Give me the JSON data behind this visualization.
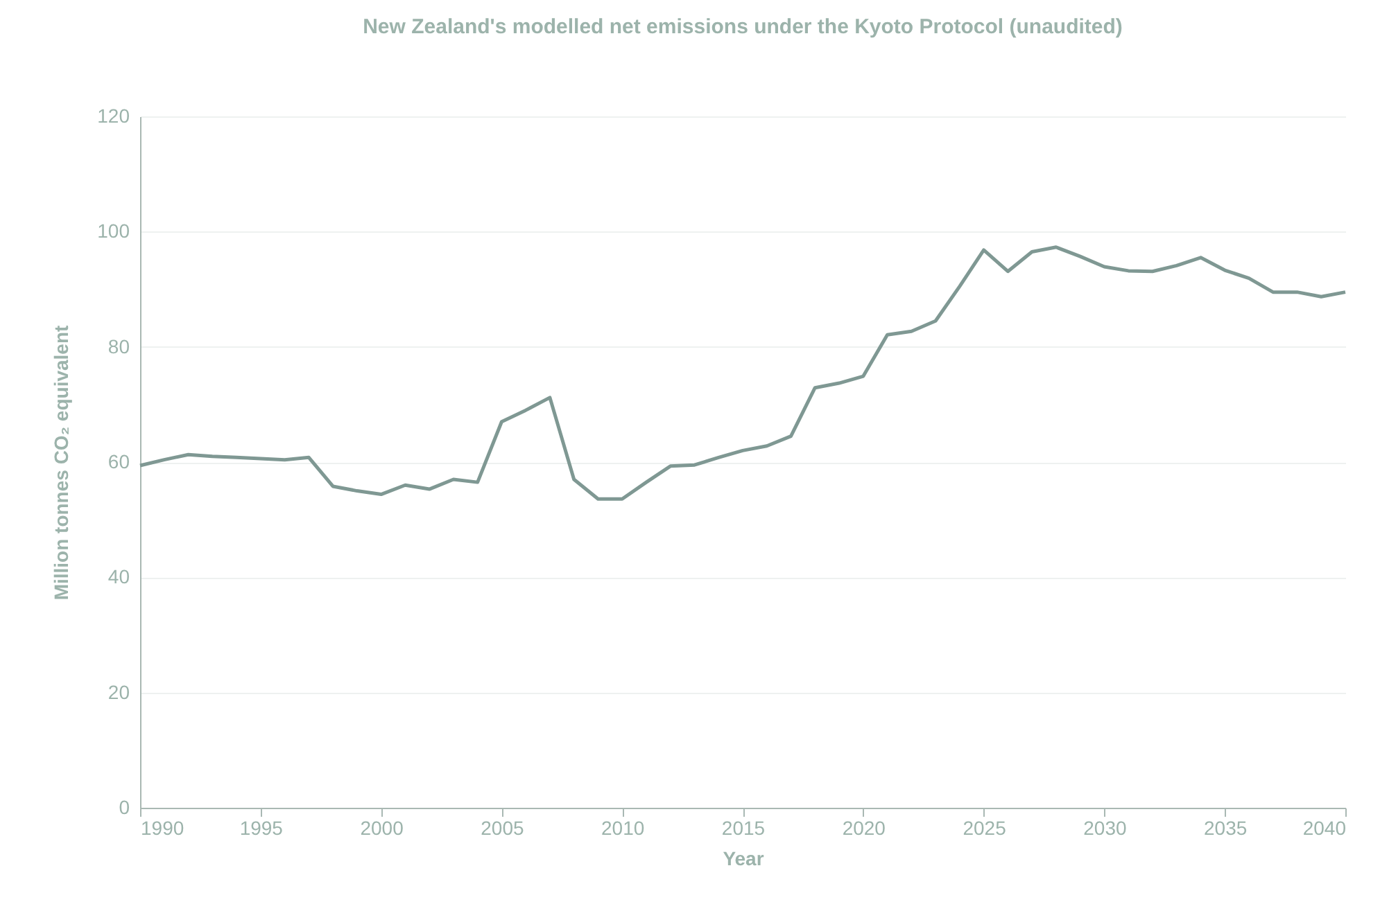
{
  "chart_data": {
    "type": "line",
    "title": "New Zealand's modelled net emissions under the Kyoto Protocol (unaudited)",
    "xlabel": "Year",
    "ylabel": "Million tonnes CO₂ equivalent",
    "x": [
      1990,
      1991,
      1992,
      1993,
      1994,
      1995,
      1996,
      1997,
      1998,
      1999,
      2000,
      2001,
      2002,
      2003,
      2004,
      2005,
      2006,
      2007,
      2008,
      2009,
      2010,
      2011,
      2012,
      2013,
      2014,
      2015,
      2016,
      2017,
      2018,
      2019,
      2020,
      2021,
      2022,
      2023,
      2024,
      2025,
      2026,
      2027,
      2028,
      2029,
      2030,
      2031,
      2032,
      2033,
      2034,
      2035,
      2036,
      2037,
      2038,
      2039,
      2040
    ],
    "series": [
      {
        "color": "#7f9893",
        "values": [
          59.4,
          60.4,
          61.3,
          61,
          60.8,
          60.6,
          60.4,
          60.8,
          55.8,
          55,
          54.4,
          56,
          55.3,
          57,
          56.5,
          67,
          69,
          71.2,
          57,
          53.6,
          53.6,
          56.5,
          59.3,
          59.5,
          60.8,
          62,
          62.8,
          64.5,
          72.9,
          73.7,
          74.9,
          82.1,
          82.7,
          84.5,
          90.5,
          96.8,
          93.1,
          96.5,
          97.3,
          95.7,
          93.9,
          93.2,
          93.1,
          94.1,
          95.5,
          93.3,
          91.9,
          89.5,
          89.5,
          88.7,
          89.5
        ]
      }
    ],
    "xlim": [
      1990,
      2040
    ],
    "xticks": [
      1990,
      1995,
      2000,
      2005,
      2010,
      2015,
      2020,
      2025,
      2030,
      2035,
      2040
    ],
    "ylim": [
      0,
      120
    ],
    "yticks": [
      0,
      20,
      40,
      60,
      80,
      100,
      120
    ],
    "grid": "y"
  }
}
